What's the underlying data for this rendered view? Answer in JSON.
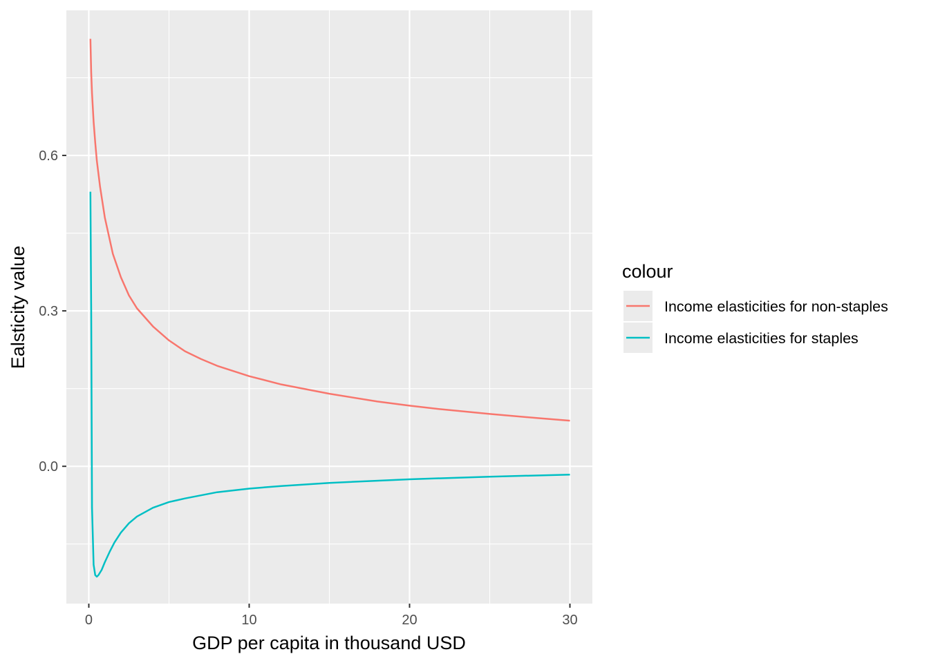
{
  "chart_data": {
    "type": "line",
    "xlabel": "GDP per capita in thousand USD",
    "ylabel": "Ealsticity value",
    "xlim": [
      -1.4,
      31.4
    ],
    "ylim": [
      -0.265,
      0.88
    ],
    "x_ticks": [
      0,
      10,
      20,
      30
    ],
    "x_tick_labels": [
      "0",
      "10",
      "20",
      "30"
    ],
    "y_ticks": [
      0.0,
      0.3,
      0.6
    ],
    "y_tick_labels": [
      "0.0",
      "0.3",
      "0.6"
    ],
    "x_minor_ticks": [
      5,
      15,
      25
    ],
    "y_minor_ticks": [
      -0.15,
      0.15,
      0.45,
      0.75
    ],
    "grid": true,
    "legend": {
      "title": "colour",
      "position": "right"
    },
    "series": [
      {
        "name": "Income elasticities for non-staples",
        "color": "#F8766D",
        "x": [
          0.1,
          0.15,
          0.2,
          0.3,
          0.4,
          0.5,
          0.7,
          1,
          1.5,
          2,
          2.5,
          3,
          4,
          5,
          6,
          7,
          8,
          10,
          12,
          15,
          18,
          20,
          22,
          25,
          28,
          30
        ],
        "y": [
          0.825,
          0.76,
          0.72,
          0.665,
          0.625,
          0.59,
          0.54,
          0.48,
          0.41,
          0.365,
          0.33,
          0.305,
          0.27,
          0.243,
          0.222,
          0.207,
          0.194,
          0.174,
          0.158,
          0.14,
          0.125,
          0.117,
          0.11,
          0.101,
          0.093,
          0.088
        ]
      },
      {
        "name": "Income elasticities for staples",
        "color": "#00BFC4",
        "x": [
          0.1,
          0.15,
          0.2,
          0.3,
          0.4,
          0.5,
          0.6,
          0.8,
          1,
          1.3,
          1.6,
          2,
          2.5,
          3,
          4,
          5,
          6,
          8,
          10,
          12,
          15,
          20,
          25,
          30
        ],
        "y": [
          0.53,
          0.3,
          -0.08,
          -0.19,
          -0.21,
          -0.213,
          -0.21,
          -0.2,
          -0.185,
          -0.165,
          -0.147,
          -0.128,
          -0.11,
          -0.097,
          -0.08,
          -0.069,
          -0.062,
          -0.05,
          -0.043,
          -0.038,
          -0.032,
          -0.025,
          -0.02,
          -0.016
        ]
      }
    ]
  }
}
